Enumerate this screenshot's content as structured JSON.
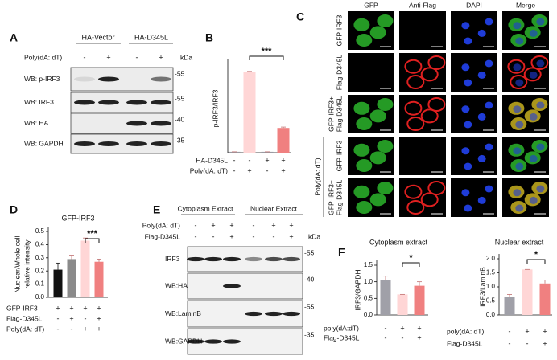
{
  "panel_labels": [
    "A",
    "B",
    "C",
    "D",
    "E",
    "F"
  ],
  "blot_a": {
    "groups": [
      "HA-Vector",
      "HA-D345L"
    ],
    "treatment": {
      "label": "Poly(dA: dT)",
      "signs": [
        "-",
        "+",
        "-",
        "+"
      ]
    },
    "unit": "kDa",
    "rows": [
      {
        "label": "WB: p-IRF3",
        "marker": "-55"
      },
      {
        "label": "WB: IRF3",
        "marker": "-55"
      },
      {
        "label": "WB: HA",
        "marker": "-40"
      },
      {
        "label": "WB: GAPDH",
        "marker": "-35"
      }
    ]
  },
  "microscopy_c": {
    "columns": [
      "GFP",
      "Anti-Flag",
      "DAPI",
      "Merge"
    ],
    "rows": [
      [
        "GFP-IRF3"
      ],
      [
        "Flag-D345L"
      ],
      [
        "GFP-IRF3+",
        "Flag-D345L"
      ],
      [
        "GFP-IRF3"
      ],
      [
        "GFP-IRF3+",
        "Flag-D345L"
      ]
    ],
    "group_label": "Poly(dA: dT)"
  },
  "blot_e": {
    "groups": [
      "Cytoplasm Extract",
      "Nuclear Extract"
    ],
    "treatments": [
      {
        "label": "Poly(dA: dT)",
        "signs": [
          "-",
          "+",
          "+",
          "-",
          "+",
          "+"
        ]
      },
      {
        "label": "Flag-D345L",
        "signs": [
          "-",
          "-",
          "+",
          "-",
          "-",
          "+"
        ]
      }
    ],
    "unit": "kDa",
    "rows": [
      {
        "label": "IRF3",
        "marker": "-55"
      },
      {
        "label": "WB:HA",
        "marker": "-40"
      },
      {
        "label": "WB:LaminB",
        "marker": "-55"
      },
      {
        "label": "WB:GAPDH",
        "marker": "-35"
      }
    ]
  },
  "chart_data": [
    {
      "type": "bar",
      "ylabel": [
        "p-IRF3/IRF3"
      ],
      "categories": [
        null,
        null,
        null,
        null
      ],
      "values": [
        0.01,
        0.91,
        0.01,
        0.28
      ],
      "errors": [
        0.0,
        0.01,
        0.0,
        0.01
      ],
      "colors": [
        "#9a9aa2",
        "#ffd6d6",
        "#9a9aa2",
        "#f08080"
      ],
      "ylim": [
        0,
        1
      ],
      "conditions": [
        {
          "label": "HA-D345L",
          "signs": [
            "-",
            "-",
            "+",
            "+"
          ]
        },
        {
          "label": "Poly(dA: dT)",
          "signs": [
            "-",
            "+",
            "-",
            "+"
          ]
        }
      ],
      "significance": {
        "label": "***",
        "between": [
          1,
          3
        ]
      }
    },
    {
      "type": "bar",
      "title": "GFP-IRF3",
      "ylabel": [
        "Nuclear/Whole cell",
        "relative intensity"
      ],
      "categories": [
        null,
        null,
        null,
        null
      ],
      "values": [
        0.21,
        0.29,
        0.43,
        0.27
      ],
      "errors": [
        0.05,
        0.03,
        0.02,
        0.02
      ],
      "colors": [
        "#111111",
        "#8a8a8a",
        "#ffd6d6",
        "#f08080"
      ],
      "ylim": [
        0,
        0.5
      ],
      "yticks": [
        {
          "value": 0,
          "label": "0.0"
        },
        0.1,
        0.2,
        0.3,
        0.4,
        0.5
      ],
      "conditions": [
        {
          "label": "GFP-IRF3",
          "signs": [
            "+",
            "+",
            "+",
            "+"
          ]
        },
        {
          "label": "Flag-D345L",
          "signs": [
            "-",
            "+",
            "-",
            "+"
          ]
        },
        {
          "label": "Poly(dA: dT)",
          "signs": [
            "-",
            "-",
            "+",
            "+"
          ]
        }
      ],
      "significance": {
        "label": "***",
        "between": [
          2,
          3
        ]
      }
    },
    {
      "type": "bar",
      "title": "Cytoplasm extract",
      "ylabel": [
        "IRF3/GAPDH"
      ],
      "categories": [
        null,
        null,
        null
      ],
      "values": [
        1.05,
        0.62,
        0.88
      ],
      "errors": [
        0.12,
        0.0,
        0.12
      ],
      "colors": [
        "#a0a0a8",
        "#ffd6d6",
        "#f08080"
      ],
      "ylim": [
        0,
        1.5
      ],
      "yticks": [
        {
          "value": 0,
          "label": "0.0"
        },
        0.5,
        {
          "value": 1,
          "label": "1.0"
        },
        1.5
      ],
      "conditions": [
        {
          "label": "poly(dA:dT)",
          "signs": [
            "-",
            "+",
            "+"
          ]
        },
        {
          "label": "Flag-D345L",
          "signs": [
            "-",
            "-",
            "+"
          ]
        }
      ],
      "significance": {
        "label": "*",
        "between": [
          1,
          2
        ]
      }
    },
    {
      "type": "bar",
      "title": "Nuclear extract",
      "ylabel": [
        "IRF3/LaminB"
      ],
      "categories": [
        null,
        null,
        null
      ],
      "values": [
        0.65,
        1.62,
        1.12
      ],
      "errors": [
        0.08,
        0.0,
        0.12
      ],
      "colors": [
        "#a0a0a8",
        "#ffd6d6",
        "#f08080"
      ],
      "ylim": [
        0,
        2
      ],
      "yticks": [
        {
          "value": 0,
          "label": "0.0"
        },
        0.5,
        {
          "value": 1,
          "label": "1.0"
        },
        1.5,
        {
          "value": 2,
          "label": "2.0"
        }
      ],
      "conditions": [
        {
          "label": "poly(dA: dT)",
          "signs": [
            "-",
            "+",
            "+"
          ]
        },
        {
          "label": "Flag-D345L",
          "signs": [
            "-",
            "-",
            "+"
          ]
        }
      ],
      "significance": {
        "label": "*",
        "between": [
          1,
          2
        ]
      }
    }
  ]
}
